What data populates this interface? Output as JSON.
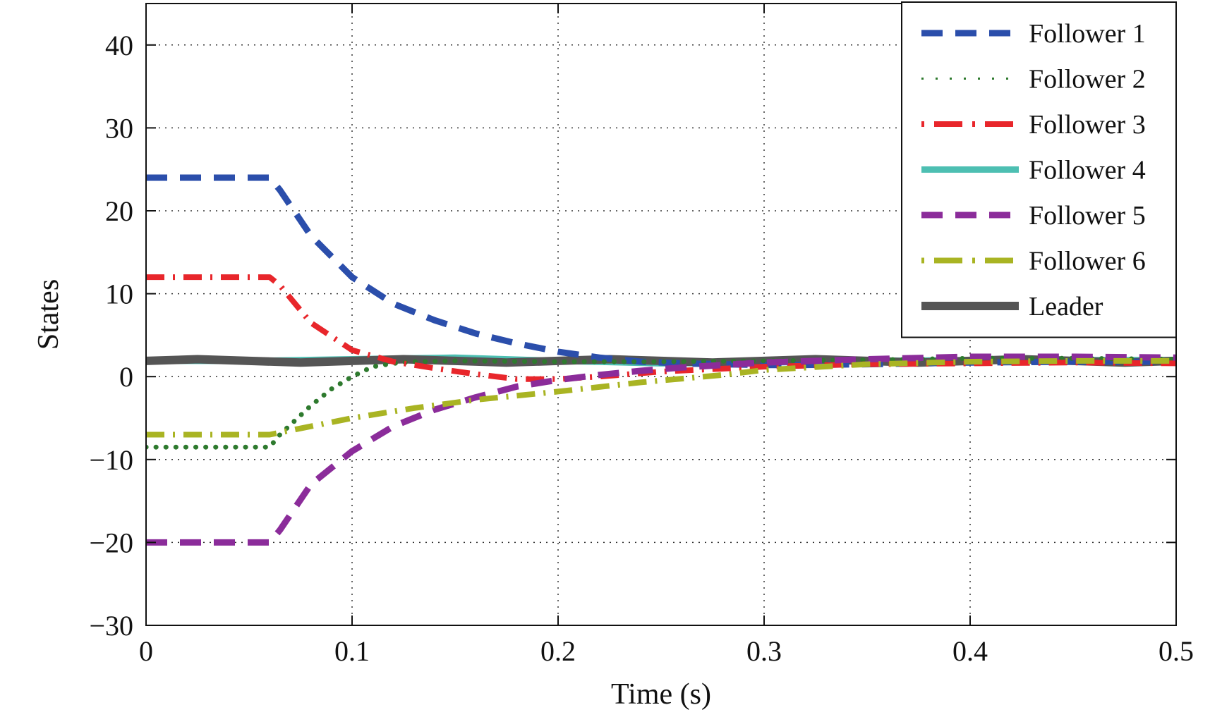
{
  "chart_data": {
    "type": "line",
    "title": "",
    "xlabel": "Time (s)",
    "ylabel": "States",
    "xlim": [
      0,
      0.5
    ],
    "ylim": [
      -30,
      45
    ],
    "xticks": [
      0,
      0.1,
      0.2,
      0.3,
      0.4,
      0.5
    ],
    "xtick_labels": [
      "0",
      "0.1",
      "0.2",
      "0.3",
      "0.4",
      "0.5"
    ],
    "yticks": [
      -30,
      -20,
      -10,
      0,
      10,
      20,
      30,
      40
    ],
    "ytick_labels": [
      "−30",
      "−20",
      "−10",
      "0",
      "10",
      "20",
      "30",
      "40"
    ],
    "grid": true,
    "legend_position": "top-right",
    "series": [
      {
        "name": "Follower 1",
        "color": "#2b4eab",
        "style": "dashed",
        "x": [
          0,
          0.06,
          0.065,
          0.08,
          0.1,
          0.12,
          0.14,
          0.16,
          0.18,
          0.2,
          0.22,
          0.24,
          0.26,
          0.28,
          0.3,
          0.32,
          0.35,
          0.4,
          0.45,
          0.5
        ],
        "y": [
          24,
          24,
          22.5,
          17,
          12,
          8.8,
          6.8,
          5.2,
          4,
          3,
          2.3,
          1.8,
          1.6,
          1.5,
          1.4,
          1.4,
          1.5,
          1.7,
          1.8,
          1.8
        ]
      },
      {
        "name": "Follower 2",
        "color": "#2e7a2e",
        "style": "dotted",
        "x": [
          0,
          0.06,
          0.065,
          0.08,
          0.09,
          0.1,
          0.11,
          0.12,
          0.13,
          0.15,
          0.2,
          0.25,
          0.3,
          0.35,
          0.4,
          0.45,
          0.5
        ],
        "y": [
          -8.5,
          -8.5,
          -7,
          -3.5,
          -1.5,
          0,
          1.2,
          1.6,
          1.8,
          1.9,
          1.8,
          1.8,
          1.9,
          2,
          2.2,
          2.2,
          2.1
        ]
      },
      {
        "name": "Follower 3",
        "color": "#e8262b",
        "style": "dashdot",
        "x": [
          0,
          0.06,
          0.065,
          0.08,
          0.1,
          0.12,
          0.14,
          0.16,
          0.18,
          0.2,
          0.22,
          0.25,
          0.3,
          0.35,
          0.4,
          0.45,
          0.5
        ],
        "y": [
          12,
          12,
          11,
          6.5,
          3.2,
          1.8,
          1,
          0.3,
          -0.3,
          -0.3,
          0,
          0.6,
          1.2,
          1.5,
          1.6,
          1.7,
          1.6
        ]
      },
      {
        "name": "Follower 4",
        "color": "#4dbfb2",
        "style": "solid",
        "x": [
          0,
          0.05,
          0.1,
          0.15,
          0.2,
          0.25,
          0.3,
          0.35,
          0.4,
          0.45,
          0.5
        ],
        "y": [
          1.9,
          1.9,
          2.1,
          2.3,
          1.9,
          1.6,
          1.7,
          1.9,
          2,
          2,
          2
        ]
      },
      {
        "name": "Follower 5",
        "color": "#8b2c9a",
        "style": "dashed",
        "x": [
          0,
          0.06,
          0.065,
          0.08,
          0.1,
          0.12,
          0.14,
          0.16,
          0.18,
          0.2,
          0.22,
          0.24,
          0.26,
          0.3,
          0.35,
          0.4,
          0.45,
          0.5
        ],
        "y": [
          -20,
          -20,
          -18.5,
          -13,
          -9,
          -6,
          -4,
          -2.5,
          -1.2,
          -0.4,
          0.2,
          0.7,
          1.1,
          1.7,
          2.1,
          2.4,
          2.4,
          2.3
        ]
      },
      {
        "name": "Follower 6",
        "color": "#a9b423",
        "style": "dashdot",
        "x": [
          0,
          0.06,
          0.07,
          0.1,
          0.13,
          0.16,
          0.2,
          0.24,
          0.28,
          0.3,
          0.35,
          0.4,
          0.45,
          0.5
        ],
        "y": [
          -7,
          -7,
          -6.5,
          -5,
          -3.8,
          -2.8,
          -1.8,
          -0.7,
          0.2,
          0.8,
          1.5,
          1.8,
          1.9,
          1.9
        ]
      },
      {
        "name": "Leader",
        "color": "#555555",
        "style": "solid-thick",
        "x": [
          0,
          0.025,
          0.05,
          0.075,
          0.1,
          0.125,
          0.15,
          0.175,
          0.2,
          0.225,
          0.25,
          0.275,
          0.3,
          0.325,
          0.35,
          0.375,
          0.4,
          0.425,
          0.45,
          0.475,
          0.5
        ],
        "y": [
          1.9,
          2.1,
          1.9,
          1.7,
          1.9,
          2.1,
          1.9,
          1.7,
          1.9,
          2.1,
          1.9,
          1.7,
          1.9,
          2.1,
          1.9,
          1.7,
          1.9,
          2.1,
          1.9,
          1.7,
          1.9
        ]
      }
    ]
  }
}
